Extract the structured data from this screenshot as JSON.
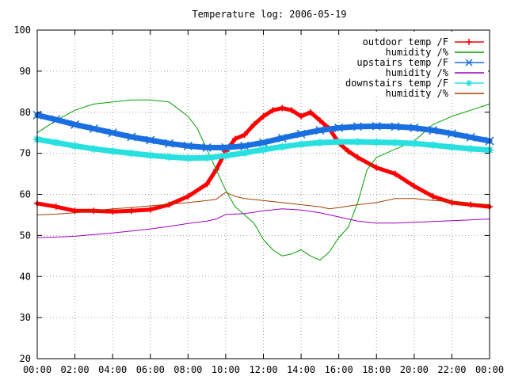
{
  "chart_data": {
    "type": "line",
    "title": "Temperature log: 2006-05-19",
    "xlabel": "",
    "ylabel": "",
    "xlim": [
      0,
      24
    ],
    "ylim": [
      20,
      100
    ],
    "grid": true,
    "legend_position": "top-right",
    "x_ticks": [
      0,
      2,
      4,
      6,
      8,
      10,
      12,
      14,
      16,
      18,
      20,
      22,
      24
    ],
    "x_tick_labels": [
      "00:00",
      "02:00",
      "04:00",
      "06:00",
      "08:00",
      "10:00",
      "12:00",
      "14:00",
      "16:00",
      "18:00",
      "20:00",
      "22:00",
      "00:00"
    ],
    "y_ticks": [
      20,
      30,
      40,
      50,
      60,
      70,
      80,
      90,
      100
    ],
    "y_tick_labels": [
      "20",
      "30",
      "40",
      "50",
      "60",
      "70",
      "80",
      "90",
      "100"
    ],
    "series": [
      {
        "name": "outdoor temp /F",
        "color": "#ff0000",
        "marker": "plus",
        "width": 5,
        "x": [
          0,
          1,
          2,
          3,
          4,
          5,
          6,
          7,
          8,
          9,
          9.5,
          10,
          10.5,
          11,
          11.5,
          12,
          12.5,
          13,
          13.5,
          14,
          14.5,
          15,
          15.5,
          16,
          16.5,
          17,
          18,
          19,
          20,
          21,
          22,
          23,
          24
        ],
        "y": [
          57.8,
          57,
          56,
          56,
          55.8,
          56,
          56.3,
          57.5,
          59.5,
          62.5,
          66,
          70.5,
          73.5,
          74.5,
          77,
          79,
          80.5,
          81,
          80.5,
          79,
          80,
          78,
          76,
          72.5,
          70.5,
          69,
          66.5,
          65,
          62,
          59.5,
          58,
          57.5,
          57
        ]
      },
      {
        "name": "humidity /%",
        "color": "#00a000",
        "marker": "none",
        "width": 1,
        "x": [
          0,
          1,
          2,
          3,
          4,
          5,
          6,
          7,
          8,
          8.5,
          9,
          9.5,
          10,
          10.5,
          11,
          11.5,
          12,
          12.5,
          13,
          13.5,
          14,
          14.5,
          15,
          15.5,
          16,
          16.5,
          17,
          17.5,
          18,
          19,
          20,
          21,
          22,
          23,
          24
        ],
        "y": [
          75,
          78,
          80.5,
          82,
          82.5,
          83,
          83,
          82.5,
          79,
          76,
          71,
          66,
          61,
          57,
          55,
          53,
          49,
          46.5,
          45,
          45.5,
          46.5,
          45,
          44,
          46,
          49.5,
          52,
          58,
          66,
          69,
          71,
          73,
          77,
          79,
          80.5,
          82
        ]
      },
      {
        "name": "upstairs temp /F",
        "color": "#1a6fe0",
        "marker": "x",
        "width": 7,
        "x": [
          0,
          1,
          2,
          3,
          4,
          5,
          6,
          7,
          8,
          9,
          10,
          11,
          12,
          13,
          14,
          15,
          16,
          17,
          18,
          19,
          20,
          21,
          22,
          23,
          24
        ],
        "y": [
          79.3,
          78.2,
          77,
          76,
          75,
          74,
          73.2,
          72.4,
          71.8,
          71.4,
          71.4,
          71.8,
          72.6,
          73.7,
          74.7,
          75.6,
          76.2,
          76.5,
          76.6,
          76.5,
          76.2,
          75.6,
          74.8,
          73.9,
          73
        ]
      },
      {
        "name": "humidity /%",
        "color": "#a000c0",
        "marker": "none",
        "width": 1,
        "x": [
          0,
          1,
          2,
          3,
          4,
          5,
          6,
          7,
          8,
          9,
          9.5,
          10,
          11,
          12,
          13,
          14,
          15,
          16,
          17,
          18,
          19,
          20,
          21,
          22,
          23,
          24
        ],
        "y": [
          49.5,
          49.6,
          49.8,
          50.2,
          50.6,
          51.1,
          51.6,
          52.2,
          52.9,
          53.5,
          54,
          55.1,
          55.3,
          56,
          56.5,
          56.2,
          55.5,
          54.5,
          53.5,
          53,
          53,
          53.2,
          53.4,
          53.6,
          53.8,
          54
        ]
      },
      {
        "name": "downstairs temp /F",
        "color": "#28e0e0",
        "marker": "star",
        "width": 7,
        "x": [
          0,
          1,
          2,
          3,
          4,
          5,
          6,
          7,
          8,
          9,
          10,
          11,
          12,
          13,
          14,
          15,
          16,
          17,
          18,
          19,
          20,
          21,
          22,
          23,
          24
        ],
        "y": [
          73.4,
          72.6,
          71.8,
          71.1,
          70.5,
          70,
          69.5,
          69.1,
          68.8,
          68.9,
          69.4,
          70.1,
          70.9,
          71.6,
          72.2,
          72.6,
          72.8,
          72.8,
          72.7,
          72.6,
          72.4,
          72,
          71.5,
          71.1,
          70.8
        ]
      },
      {
        "name": "humidity /%",
        "color": "#a04000",
        "marker": "none",
        "width": 1,
        "x": [
          0,
          1,
          2,
          3,
          4,
          5,
          6,
          7,
          8,
          9,
          9.5,
          10,
          10.5,
          11,
          12,
          13,
          14,
          15,
          15.5,
          16,
          17,
          18,
          19,
          20,
          21,
          22,
          23,
          24
        ],
        "y": [
          55,
          55.2,
          55.5,
          56,
          56.5,
          56.8,
          57.2,
          57.6,
          58,
          58.5,
          58.8,
          60.5,
          59.5,
          59,
          58.5,
          58,
          57.5,
          57,
          56.5,
          56.8,
          57.5,
          58,
          59,
          59,
          58.5,
          58.2,
          57.8,
          57.5
        ]
      }
    ]
  }
}
